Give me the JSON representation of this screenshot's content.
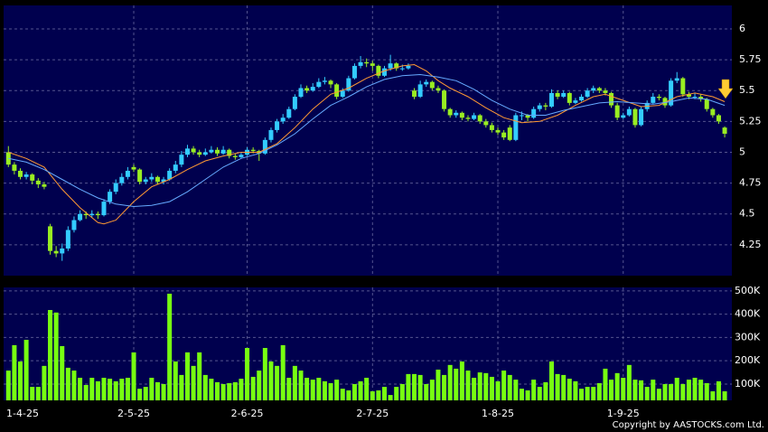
{
  "chart_data": [
    {
      "type": "candlestick",
      "up_color": "#33ccff",
      "down_color": "#99ee22",
      "grid": true,
      "ylim": [
        4.0,
        6.19
      ],
      "yticks": [
        4.25,
        4.5,
        4.75,
        5,
        5.25,
        5.5,
        5.75,
        6
      ],
      "xlim": [
        -0.8,
        121.2
      ],
      "ohlc": [
        [
          5.0,
          5.05,
          4.88,
          4.9
        ],
        [
          4.9,
          4.92,
          4.82,
          4.85
        ],
        [
          4.85,
          4.87,
          4.78,
          4.8
        ],
        [
          4.8,
          4.84,
          4.78,
          4.82
        ],
        [
          4.82,
          4.83,
          4.74,
          4.77
        ],
        [
          4.77,
          4.79,
          4.71,
          4.74
        ],
        [
          4.74,
          4.76,
          4.7,
          4.72
        ],
        [
          4.4,
          4.42,
          4.17,
          4.2
        ],
        [
          4.2,
          4.24,
          4.15,
          4.18
        ],
        [
          4.18,
          4.26,
          4.12,
          4.22
        ],
        [
          4.22,
          4.4,
          4.2,
          4.37
        ],
        [
          4.37,
          4.48,
          4.35,
          4.45
        ],
        [
          4.45,
          4.53,
          4.44,
          4.5
        ],
        [
          4.5,
          4.52,
          4.46,
          4.49
        ],
        [
          4.49,
          4.53,
          4.47,
          4.5
        ],
        [
          4.5,
          4.52,
          4.46,
          4.49
        ],
        [
          4.49,
          4.62,
          4.48,
          4.6
        ],
        [
          4.6,
          4.7,
          4.58,
          4.68
        ],
        [
          4.68,
          4.78,
          4.66,
          4.75
        ],
        [
          4.75,
          4.83,
          4.73,
          4.8
        ],
        [
          4.8,
          4.88,
          4.78,
          4.85
        ],
        [
          4.88,
          4.9,
          4.84,
          4.86
        ],
        [
          4.86,
          4.87,
          4.74,
          4.76
        ],
        [
          4.76,
          4.8,
          4.74,
          4.78
        ],
        [
          4.78,
          4.83,
          4.76,
          4.8
        ],
        [
          4.8,
          4.81,
          4.74,
          4.76
        ],
        [
          4.76,
          4.8,
          4.74,
          4.78
        ],
        [
          4.78,
          4.87,
          4.77,
          4.85
        ],
        [
          4.85,
          4.93,
          4.83,
          4.9
        ],
        [
          4.9,
          5.01,
          4.88,
          4.98
        ],
        [
          4.98,
          5.06,
          4.96,
          5.03
        ],
        [
          5.03,
          5.05,
          4.98,
          5.0
        ],
        [
          5.0,
          5.02,
          4.96,
          4.98
        ],
        [
          4.98,
          5.03,
          4.97,
          5.0
        ],
        [
          5.0,
          5.05,
          4.99,
          5.02
        ],
        [
          5.02,
          5.04,
          4.97,
          4.99
        ],
        [
          4.99,
          5.05,
          4.98,
          5.02
        ],
        [
          5.02,
          5.03,
          4.95,
          4.97
        ],
        [
          4.97,
          4.99,
          4.94,
          4.96
        ],
        [
          4.96,
          5.0,
          4.95,
          4.98
        ],
        [
          4.98,
          5.04,
          4.97,
          5.02
        ],
        [
          5.02,
          5.04,
          4.99,
          5.01
        ],
        [
          5.01,
          5.02,
          4.93,
          4.99
        ],
        [
          4.99,
          5.12,
          4.98,
          5.1
        ],
        [
          5.1,
          5.2,
          5.08,
          5.18
        ],
        [
          5.18,
          5.27,
          5.16,
          5.25
        ],
        [
          5.25,
          5.31,
          5.23,
          5.28
        ],
        [
          5.28,
          5.37,
          5.27,
          5.35
        ],
        [
          5.35,
          5.47,
          5.34,
          5.45
        ],
        [
          5.45,
          5.55,
          5.44,
          5.52
        ],
        [
          5.52,
          5.54,
          5.48,
          5.5
        ],
        [
          5.5,
          5.56,
          5.49,
          5.53
        ],
        [
          5.53,
          5.6,
          5.52,
          5.57
        ],
        [
          5.57,
          5.61,
          5.55,
          5.58
        ],
        [
          5.58,
          5.59,
          5.52,
          5.55
        ],
        [
          5.55,
          5.56,
          5.43,
          5.45
        ],
        [
          5.45,
          5.52,
          5.44,
          5.5
        ],
        [
          5.5,
          5.62,
          5.49,
          5.6
        ],
        [
          5.6,
          5.72,
          5.59,
          5.7
        ],
        [
          5.7,
          5.78,
          5.68,
          5.73
        ],
        [
          5.73,
          5.76,
          5.69,
          5.72
        ],
        [
          5.72,
          5.74,
          5.66,
          5.7
        ],
        [
          5.7,
          5.71,
          5.6,
          5.62
        ],
        [
          5.62,
          5.7,
          5.61,
          5.68
        ],
        [
          5.68,
          5.79,
          5.66,
          5.72
        ],
        [
          5.72,
          5.73,
          5.66,
          5.68
        ],
        [
          5.68,
          5.71,
          5.66,
          5.68
        ],
        [
          5.68,
          5.72,
          5.67,
          5.7
        ],
        [
          5.5,
          5.52,
          5.43,
          5.45
        ],
        [
          5.45,
          5.58,
          5.44,
          5.55
        ],
        [
          5.55,
          5.59,
          5.53,
          5.57
        ],
        [
          5.57,
          5.58,
          5.5,
          5.52
        ],
        [
          5.52,
          5.54,
          5.48,
          5.5
        ],
        [
          5.5,
          5.51,
          5.33,
          5.35
        ],
        [
          5.35,
          5.36,
          5.28,
          5.3
        ],
        [
          5.3,
          5.34,
          5.28,
          5.32
        ],
        [
          5.32,
          5.33,
          5.26,
          5.28
        ],
        [
          5.28,
          5.3,
          5.25,
          5.27
        ],
        [
          5.27,
          5.32,
          5.26,
          5.3
        ],
        [
          5.3,
          5.31,
          5.23,
          5.25
        ],
        [
          5.25,
          5.27,
          5.2,
          5.22
        ],
        [
          5.22,
          5.24,
          5.16,
          5.18
        ],
        [
          5.18,
          5.2,
          5.14,
          5.16
        ],
        [
          5.16,
          5.18,
          5.1,
          5.12
        ],
        [
          5.2,
          5.22,
          5.09,
          5.1
        ],
        [
          5.1,
          5.32,
          5.09,
          5.3
        ],
        [
          5.3,
          5.33,
          5.26,
          5.3
        ],
        [
          5.3,
          5.31,
          5.25,
          5.28
        ],
        [
          5.28,
          5.37,
          5.27,
          5.35
        ],
        [
          5.35,
          5.4,
          5.33,
          5.38
        ],
        [
          5.38,
          5.4,
          5.34,
          5.37
        ],
        [
          5.37,
          5.51,
          5.36,
          5.48
        ],
        [
          5.48,
          5.5,
          5.43,
          5.45
        ],
        [
          5.45,
          5.5,
          5.44,
          5.48
        ],
        [
          5.48,
          5.49,
          5.38,
          5.4
        ],
        [
          5.4,
          5.44,
          5.39,
          5.42
        ],
        [
          5.42,
          5.47,
          5.41,
          5.45
        ],
        [
          5.45,
          5.52,
          5.44,
          5.5
        ],
        [
          5.5,
          5.54,
          5.48,
          5.52
        ],
        [
          5.52,
          5.53,
          5.48,
          5.5
        ],
        [
          5.5,
          5.52,
          5.46,
          5.48
        ],
        [
          5.48,
          5.49,
          5.36,
          5.38
        ],
        [
          5.38,
          5.4,
          5.26,
          5.28
        ],
        [
          5.28,
          5.32,
          5.27,
          5.3
        ],
        [
          5.3,
          5.37,
          5.29,
          5.35
        ],
        [
          5.35,
          5.36,
          5.2,
          5.22
        ],
        [
          5.22,
          5.37,
          5.21,
          5.35
        ],
        [
          5.35,
          5.42,
          5.33,
          5.4
        ],
        [
          5.4,
          5.48,
          5.39,
          5.45
        ],
        [
          5.45,
          5.47,
          5.42,
          5.44
        ],
        [
          5.44,
          5.45,
          5.36,
          5.38
        ],
        [
          5.38,
          5.6,
          5.37,
          5.58
        ],
        [
          5.58,
          5.65,
          5.56,
          5.6
        ],
        [
          5.6,
          5.61,
          5.45,
          5.47
        ],
        [
          5.47,
          5.49,
          5.43,
          5.45
        ],
        [
          5.45,
          5.48,
          5.43,
          5.45
        ],
        [
          5.45,
          5.47,
          5.41,
          5.43
        ],
        [
          5.43,
          5.44,
          5.33,
          5.35
        ],
        [
          5.35,
          5.36,
          5.28,
          5.3
        ],
        [
          5.3,
          5.31,
          5.23,
          5.25
        ],
        [
          5.2,
          5.21,
          5.12,
          5.15
        ]
      ],
      "lines": [
        {
          "color": "#ff9933",
          "x": [
            0,
            3,
            6,
            9,
            12,
            15,
            16,
            18,
            21,
            24,
            27,
            30,
            33,
            36,
            39,
            42,
            45,
            48,
            51,
            54,
            57,
            60,
            63,
            66,
            68,
            70,
            72,
            74,
            77,
            80,
            83,
            86,
            89,
            92,
            95,
            98,
            100,
            103,
            106,
            109,
            112,
            115,
            118,
            120
          ],
          "values": [
            5.0,
            4.95,
            4.88,
            4.7,
            4.55,
            4.43,
            4.42,
            4.45,
            4.6,
            4.72,
            4.78,
            4.86,
            4.93,
            4.97,
            5.0,
            5.0,
            5.07,
            5.2,
            5.35,
            5.47,
            5.52,
            5.6,
            5.66,
            5.7,
            5.71,
            5.66,
            5.58,
            5.52,
            5.45,
            5.36,
            5.28,
            5.24,
            5.25,
            5.3,
            5.38,
            5.45,
            5.47,
            5.42,
            5.37,
            5.38,
            5.45,
            5.48,
            5.45,
            5.41
          ]
        },
        {
          "color": "#66aaff",
          "x": [
            0,
            3,
            6,
            9,
            12,
            15,
            18,
            21,
            24,
            27,
            30,
            33,
            36,
            39,
            42,
            45,
            48,
            51,
            54,
            57,
            60,
            63,
            66,
            69,
            72,
            75,
            78,
            81,
            84,
            87,
            90,
            93,
            96,
            99,
            102,
            105,
            108,
            111,
            114,
            117,
            120
          ],
          "values": [
            4.95,
            4.92,
            4.86,
            4.78,
            4.7,
            4.63,
            4.58,
            4.56,
            4.57,
            4.6,
            4.68,
            4.78,
            4.88,
            4.95,
            4.99,
            5.06,
            5.15,
            5.27,
            5.38,
            5.45,
            5.53,
            5.59,
            5.62,
            5.63,
            5.61,
            5.58,
            5.51,
            5.42,
            5.35,
            5.3,
            5.3,
            5.34,
            5.37,
            5.4,
            5.41,
            5.4,
            5.39,
            5.41,
            5.44,
            5.43,
            5.38
          ]
        }
      ]
    },
    {
      "type": "bar",
      "color": "#77ff11",
      "grid": true,
      "ylim": [
        30000,
        515000
      ],
      "yticks": [
        {
          "value": 100000,
          "label": "100K"
        },
        {
          "value": 200000,
          "label": "200K"
        },
        {
          "value": 300000,
          "label": "300K"
        },
        {
          "value": 400000,
          "label": "400K"
        },
        {
          "value": 500000,
          "label": "500K"
        }
      ],
      "xlim": [
        -0.8,
        121.2
      ],
      "xticks": [
        {
          "value": 0,
          "label": "1-4-25"
        },
        {
          "value": 21,
          "label": "2-5-25"
        },
        {
          "value": 40,
          "label": "2-6-25"
        },
        {
          "value": 61,
          "label": "2-7-25"
        },
        {
          "value": 82,
          "label": "1-8-25"
        },
        {
          "value": 103,
          "label": "1-9-25"
        }
      ],
      "values": [
        158000,
        267000,
        197000,
        290000,
        88000,
        88000,
        178000,
        418000,
        407000,
        263000,
        170000,
        158000,
        127000,
        96000,
        127000,
        112000,
        127000,
        123000,
        112000,
        123000,
        127000,
        236000,
        80000,
        88000,
        127000,
        108000,
        100000,
        488000,
        197000,
        139000,
        236000,
        178000,
        236000,
        139000,
        123000,
        108000,
        100000,
        104000,
        108000,
        123000,
        255000,
        131000,
        158000,
        255000,
        197000,
        178000,
        267000,
        127000,
        178000,
        158000,
        127000,
        119000,
        127000,
        112000,
        104000,
        119000,
        80000,
        73000,
        100000,
        112000,
        127000,
        69000,
        73000,
        88000,
        53000,
        88000,
        100000,
        143000,
        143000,
        139000,
        100000,
        119000,
        162000,
        139000,
        182000,
        166000,
        197000,
        158000,
        127000,
        150000,
        147000,
        131000,
        112000,
        158000,
        139000,
        119000,
        80000,
        73000,
        119000,
        88000,
        108000,
        197000,
        143000,
        139000,
        123000,
        112000,
        80000,
        88000,
        88000,
        104000,
        166000,
        119000,
        147000,
        127000,
        182000,
        119000,
        116000,
        88000,
        119000,
        80000,
        100000,
        100000,
        127000,
        100000,
        119000,
        127000,
        119000,
        104000,
        69000,
        112000,
        69000
      ]
    }
  ],
  "footer": "Copyright by AASTOCKS.com Ltd."
}
